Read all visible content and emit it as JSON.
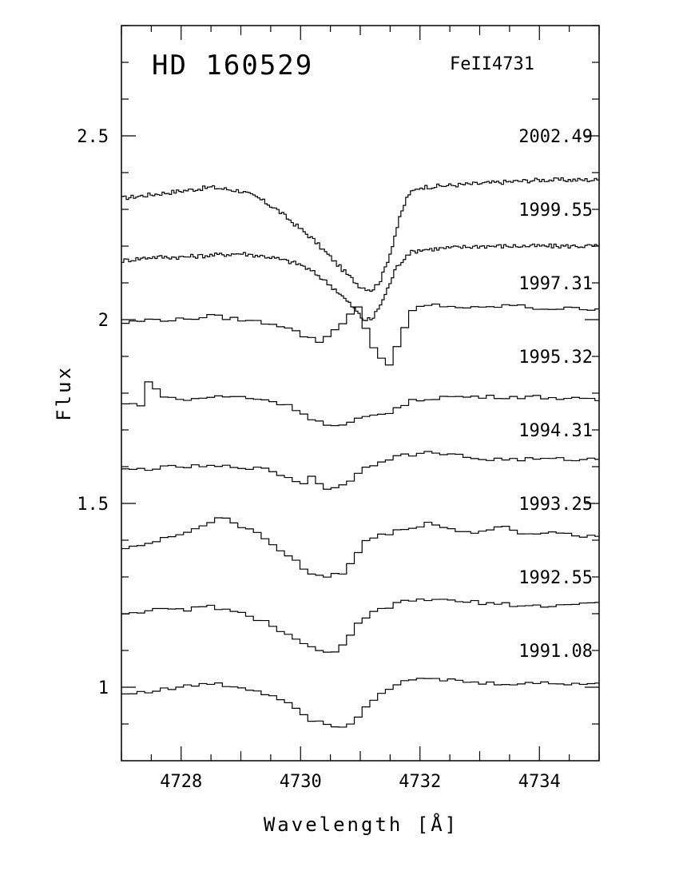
{
  "chart_data": {
    "type": "line",
    "title": "HD 160529",
    "subtitle": "FeII4731",
    "xlabel": "Wavelength [Å]",
    "ylabel": "Flux",
    "xlim": [
      4727,
      4735
    ],
    "ylim": [
      0.8,
      2.8
    ],
    "x_ticks": [
      4728,
      4730,
      4732,
      4734
    ],
    "x_tick_labels": [
      "4728",
      "4730",
      "4732",
      "4734"
    ],
    "y_ticks": [
      1,
      1.5,
      2,
      2.5
    ],
    "y_tick_labels": [
      "1",
      "1.5",
      "2",
      "2.5"
    ],
    "grid": false,
    "series": [
      {
        "name": "2002.49",
        "resolution": 0.04,
        "points": [
          [
            4727,
            2.33
          ],
          [
            4727.5,
            2.34
          ],
          [
            4728,
            2.35
          ],
          [
            4728.5,
            2.36
          ],
          [
            4729,
            2.35
          ],
          [
            4729.3,
            2.33
          ],
          [
            4729.6,
            2.3
          ],
          [
            4729.9,
            2.26
          ],
          [
            4730.2,
            2.22
          ],
          [
            4730.5,
            2.17
          ],
          [
            4730.8,
            2.12
          ],
          [
            4731.0,
            2.09
          ],
          [
            4731.2,
            2.08
          ],
          [
            4731.35,
            2.11
          ],
          [
            4731.5,
            2.18
          ],
          [
            4731.65,
            2.27
          ],
          [
            4731.8,
            2.34
          ],
          [
            4732,
            2.36
          ],
          [
            4733,
            2.37
          ],
          [
            4734,
            2.38
          ],
          [
            4735,
            2.38
          ]
        ]
      },
      {
        "name": "1999.55",
        "resolution": 0.04,
        "points": [
          [
            4727,
            2.16
          ],
          [
            4727.5,
            2.17
          ],
          [
            4728,
            2.17
          ],
          [
            4729,
            2.18
          ],
          [
            4729.5,
            2.17
          ],
          [
            4730,
            2.15
          ],
          [
            4730.3,
            2.12
          ],
          [
            4730.6,
            2.08
          ],
          [
            4730.9,
            2.03
          ],
          [
            4731.05,
            2.0
          ],
          [
            4731.2,
            2.0
          ],
          [
            4731.4,
            2.06
          ],
          [
            4731.6,
            2.14
          ],
          [
            4731.8,
            2.18
          ],
          [
            4732,
            2.19
          ],
          [
            4733,
            2.2
          ],
          [
            4734,
            2.2
          ],
          [
            4735,
            2.2
          ]
        ]
      },
      {
        "name": "1997.31",
        "resolution": 0.13,
        "points": [
          [
            4727,
            1.99
          ],
          [
            4727.5,
            2.0
          ],
          [
            4728,
            2.0
          ],
          [
            4728.5,
            2.01
          ],
          [
            4729,
            2.0
          ],
          [
            4729.5,
            1.99
          ],
          [
            4729.8,
            1.98
          ],
          [
            4730.0,
            1.96
          ],
          [
            4730.3,
            1.94
          ],
          [
            4730.5,
            1.96
          ],
          [
            4730.75,
            2.0
          ],
          [
            4730.95,
            2.04
          ],
          [
            4731.1,
            1.97
          ],
          [
            4731.3,
            1.9
          ],
          [
            4731.5,
            1.88
          ],
          [
            4731.7,
            1.96
          ],
          [
            4731.9,
            2.03
          ],
          [
            4732.2,
            2.04
          ],
          [
            4733,
            2.03
          ],
          [
            4733.5,
            2.04
          ],
          [
            4734,
            2.03
          ],
          [
            4735,
            2.03
          ]
        ]
      },
      {
        "name": "1995.32",
        "resolution": 0.13,
        "points": [
          [
            4727,
            1.77
          ],
          [
            4727.4,
            1.77
          ],
          [
            4727.48,
            1.86
          ],
          [
            4727.6,
            1.8
          ],
          [
            4728,
            1.78
          ],
          [
            4728.5,
            1.79
          ],
          [
            4729,
            1.79
          ],
          [
            4729.5,
            1.78
          ],
          [
            4729.9,
            1.76
          ],
          [
            4730.2,
            1.73
          ],
          [
            4730.5,
            1.71
          ],
          [
            4730.7,
            1.71
          ],
          [
            4731,
            1.73
          ],
          [
            4731.5,
            1.75
          ],
          [
            4731.9,
            1.78
          ],
          [
            4732.4,
            1.79
          ],
          [
            4733,
            1.79
          ],
          [
            4734,
            1.79
          ],
          [
            4735,
            1.78
          ]
        ]
      },
      {
        "name": "1994.31",
        "resolution": 0.13,
        "points": [
          [
            4727,
            1.59
          ],
          [
            4728,
            1.6
          ],
          [
            4729,
            1.6
          ],
          [
            4729.5,
            1.59
          ],
          [
            4729.8,
            1.57
          ],
          [
            4730.1,
            1.55
          ],
          [
            4730.2,
            1.58
          ],
          [
            4730.4,
            1.54
          ],
          [
            4730.6,
            1.54
          ],
          [
            4730.8,
            1.56
          ],
          [
            4731,
            1.59
          ],
          [
            4731.4,
            1.62
          ],
          [
            4731.7,
            1.63
          ],
          [
            4732.3,
            1.64
          ],
          [
            4733,
            1.62
          ],
          [
            4734,
            1.62
          ],
          [
            4735,
            1.62
          ]
        ]
      },
      {
        "name": "1993.25",
        "resolution": 0.13,
        "points": [
          [
            4727,
            1.38
          ],
          [
            4727.5,
            1.39
          ],
          [
            4728,
            1.42
          ],
          [
            4728.4,
            1.44
          ],
          [
            4728.7,
            1.47
          ],
          [
            4728.9,
            1.44
          ],
          [
            4729.3,
            1.42
          ],
          [
            4729.6,
            1.38
          ],
          [
            4729.9,
            1.35
          ],
          [
            4730.1,
            1.31
          ],
          [
            4730.4,
            1.3
          ],
          [
            4730.7,
            1.31
          ],
          [
            4730.9,
            1.35
          ],
          [
            4731.1,
            1.4
          ],
          [
            4731.5,
            1.42
          ],
          [
            4732,
            1.44
          ],
          [
            4732.1,
            1.45
          ],
          [
            4732.5,
            1.43
          ],
          [
            4733,
            1.42
          ],
          [
            4733.4,
            1.44
          ],
          [
            4733.6,
            1.42
          ],
          [
            4734,
            1.42
          ],
          [
            4735,
            1.41
          ]
        ]
      },
      {
        "name": "1992.55",
        "resolution": 0.13,
        "points": [
          [
            4727,
            1.2
          ],
          [
            4727.5,
            1.21
          ],
          [
            4728,
            1.21
          ],
          [
            4728.5,
            1.22
          ],
          [
            4729,
            1.2
          ],
          [
            4729.4,
            1.18
          ],
          [
            4729.8,
            1.14
          ],
          [
            4730.1,
            1.11
          ],
          [
            4730.4,
            1.1
          ],
          [
            4730.6,
            1.09
          ],
          [
            4730.8,
            1.13
          ],
          [
            4731,
            1.18
          ],
          [
            4731.3,
            1.21
          ],
          [
            4731.7,
            1.23
          ],
          [
            4732,
            1.24
          ],
          [
            4733,
            1.23
          ],
          [
            4734,
            1.22
          ],
          [
            4735,
            1.23
          ]
        ]
      },
      {
        "name": "1991.08",
        "resolution": 0.13,
        "points": [
          [
            4727,
            0.98
          ],
          [
            4727.5,
            0.99
          ],
          [
            4728,
            1.0
          ],
          [
            4728.5,
            1.01
          ],
          [
            4729,
            1.0
          ],
          [
            4729.5,
            0.98
          ],
          [
            4729.9,
            0.95
          ],
          [
            4730.2,
            0.91
          ],
          [
            4730.5,
            0.9
          ],
          [
            4730.7,
            0.89
          ],
          [
            4730.9,
            0.91
          ],
          [
            4731.1,
            0.95
          ],
          [
            4731.4,
            0.99
          ],
          [
            4731.6,
            1.01
          ],
          [
            4731.8,
            1.02
          ],
          [
            4732.5,
            1.02
          ],
          [
            4733,
            1.01
          ],
          [
            4734,
            1.01
          ],
          [
            4735,
            1.01
          ]
        ]
      }
    ],
    "epoch_labels": [
      {
        "text": "2002.49",
        "y": 2.5
      },
      {
        "text": "1999.55",
        "y": 2.3
      },
      {
        "text": "1997.31",
        "y": 2.1
      },
      {
        "text": "1995.32",
        "y": 1.9
      },
      {
        "text": "1994.31",
        "y": 1.7
      },
      {
        "text": "1993.25",
        "y": 1.5
      },
      {
        "text": "1992.55",
        "y": 1.3
      },
      {
        "text": "1991.08",
        "y": 1.1
      }
    ]
  }
}
